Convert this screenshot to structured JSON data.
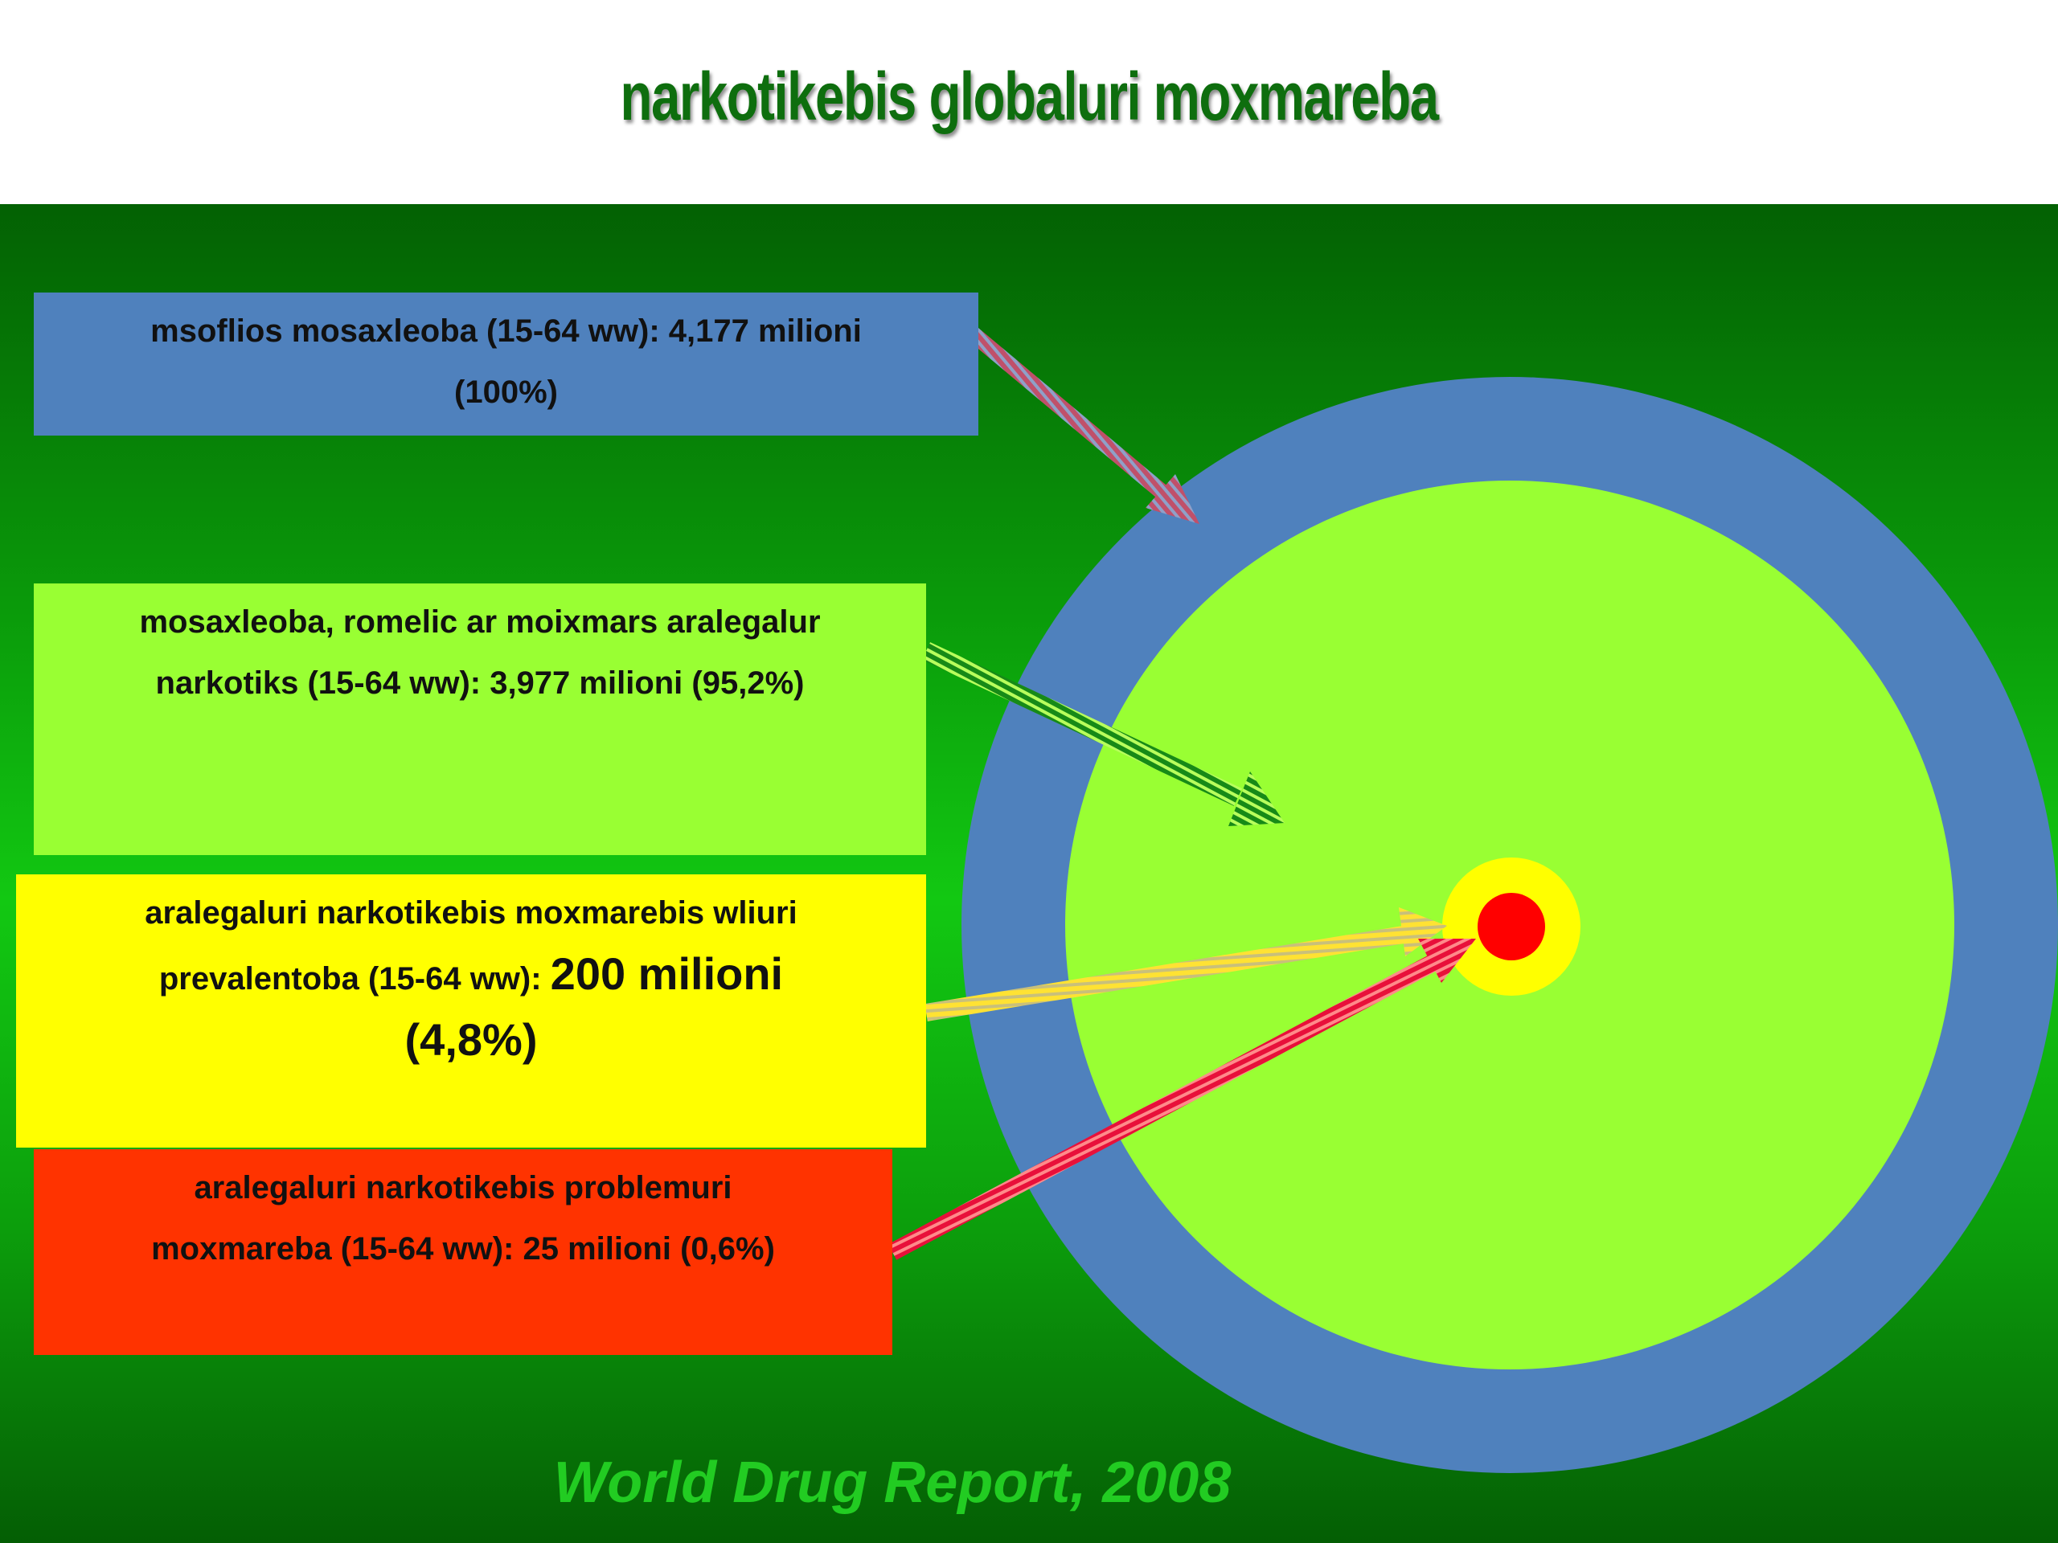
{
  "title": "narkotikebis globaluri moxmareba",
  "boxes": {
    "population": {
      "line1": "msoflios mosaxleoba (15-64 ww): 4,177 milioni",
      "line2": "(100%)",
      "color": "#4f81bd"
    },
    "nonusers": {
      "line1": "mosaxleoba, romelic ar moixmars aralegalur",
      "line2": "narkotiks (15-64 ww): 3,977 milioni (95,2%)",
      "color": "#99ff33"
    },
    "users": {
      "line1": "aralegaluri narkotikebis moxmarebis wliuri",
      "line2_prefix": "prevalentoba (15-64 ww): ",
      "line2_value": "200 milioni",
      "line3": "(4,8%)",
      "color": "#ffff00"
    },
    "problem": {
      "line1": "aralegaluri narkotikebis problemuri",
      "line2": "moxmareba (15-64 ww): 25 milioni (0,6%)",
      "color": "#ff3300"
    }
  },
  "target": {
    "rings": [
      {
        "name": "population",
        "share_percent": 100,
        "color": "#4f81bd"
      },
      {
        "name": "nonusers",
        "share_percent": 95.2,
        "color": "#99ff33"
      },
      {
        "name": "users",
        "share_percent": 4.8,
        "color": "#ffff00"
      },
      {
        "name": "problem",
        "share_percent": 0.6,
        "color": "#ff0000"
      }
    ]
  },
  "source": "World Drug Report, 2008"
}
